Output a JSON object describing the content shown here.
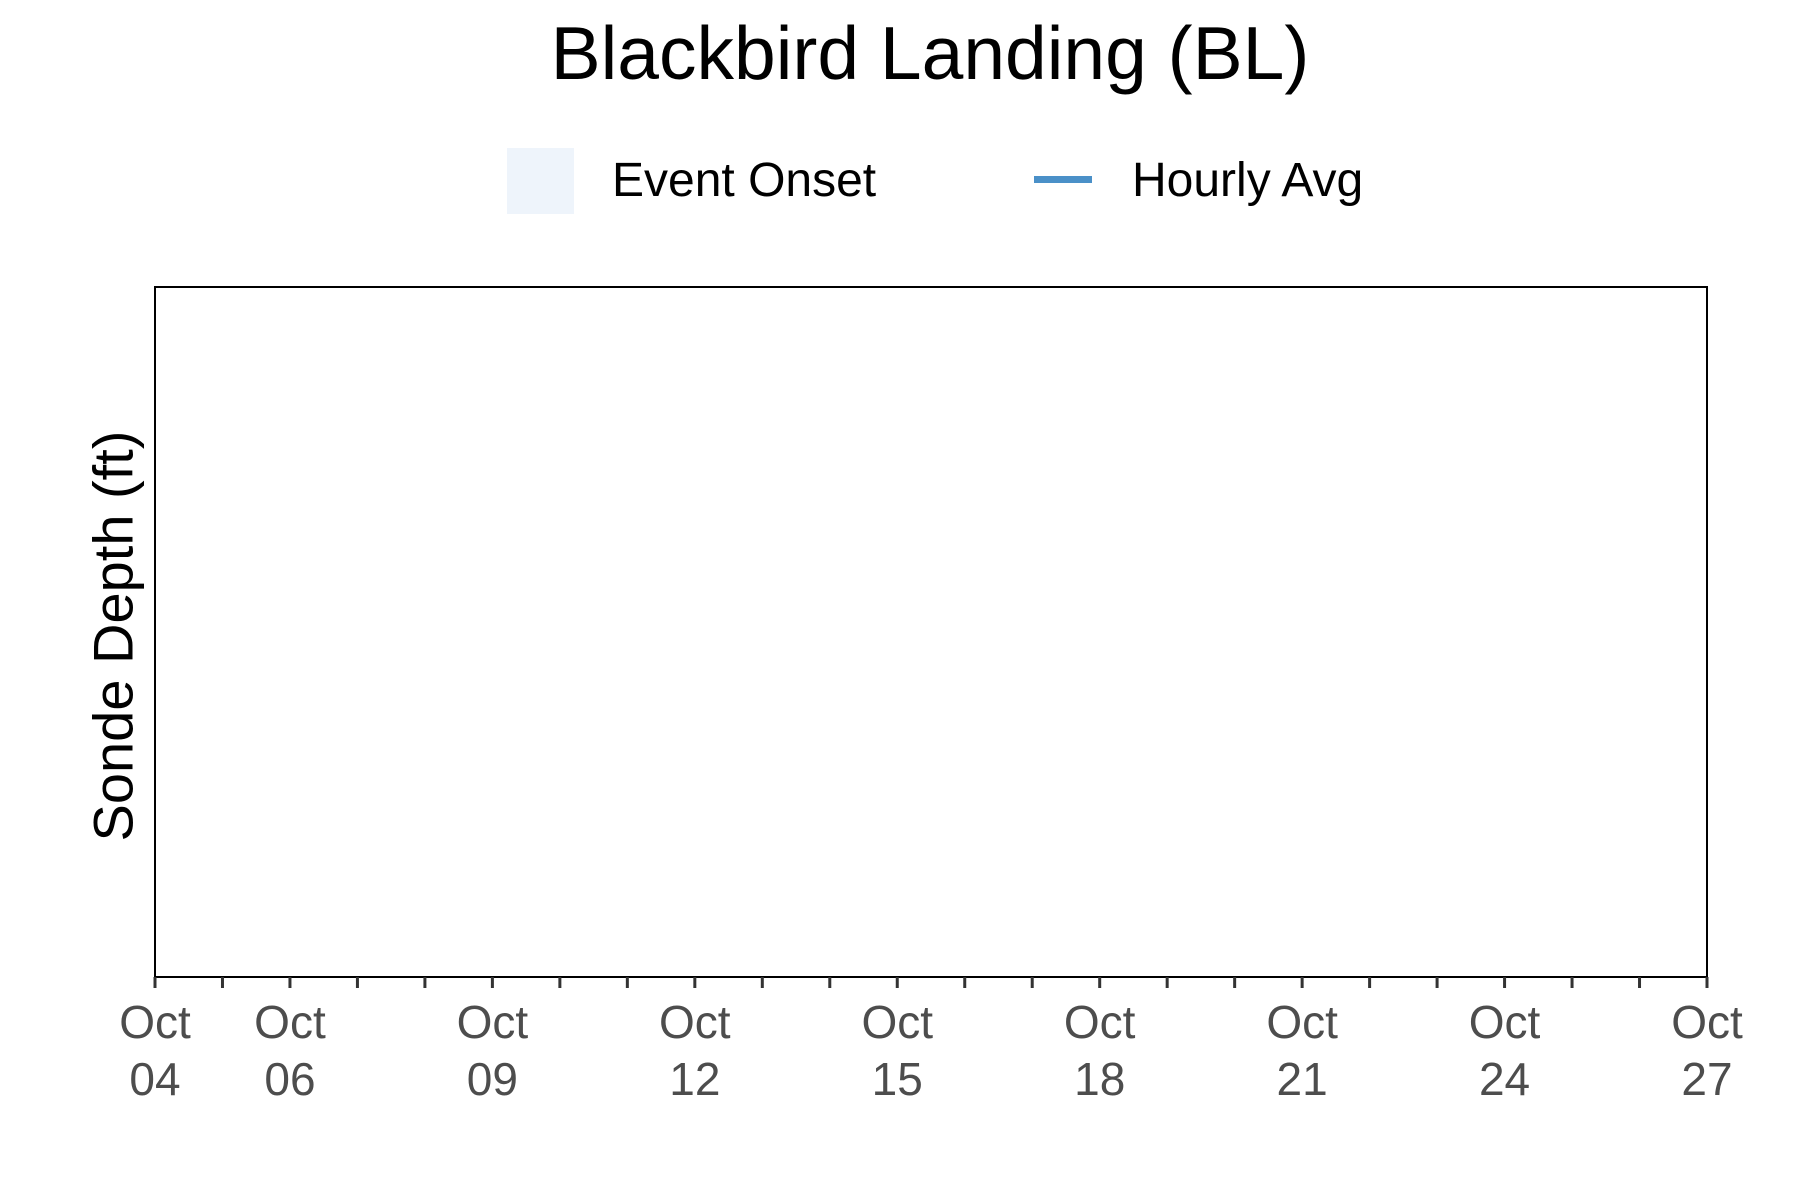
{
  "chart_data": {
    "type": "line",
    "title": "Blackbird Landing (BL)",
    "xlabel": "",
    "ylabel": "Sonde Depth (ft)",
    "x_axis": {
      "type": "date",
      "range": [
        "Oct 04",
        "Oct 27"
      ],
      "tick_labels": [
        {
          "month": "Oct",
          "day": "04"
        },
        {
          "month": "Oct",
          "day": "06"
        },
        {
          "month": "Oct",
          "day": "09"
        },
        {
          "month": "Oct",
          "day": "12"
        },
        {
          "month": "Oct",
          "day": "15"
        },
        {
          "month": "Oct",
          "day": "18"
        },
        {
          "month": "Oct",
          "day": "21"
        },
        {
          "month": "Oct",
          "day": "24"
        },
        {
          "month": "Oct",
          "day": "27"
        }
      ],
      "major_tick_days": [
        4,
        6,
        9,
        12,
        15,
        18,
        21,
        24,
        27
      ],
      "minor_tick_days": [
        5,
        7,
        8,
        10,
        11,
        13,
        14,
        16,
        17,
        19,
        20,
        22,
        23,
        25,
        26
      ]
    },
    "grid": false,
    "legend": {
      "position": "top",
      "entries": [
        {
          "label": "Event Onset",
          "kind": "area",
          "color": "#eef4fb"
        },
        {
          "label": "Hourly Avg",
          "kind": "line",
          "color": "#4a90c8"
        }
      ]
    },
    "series": []
  }
}
